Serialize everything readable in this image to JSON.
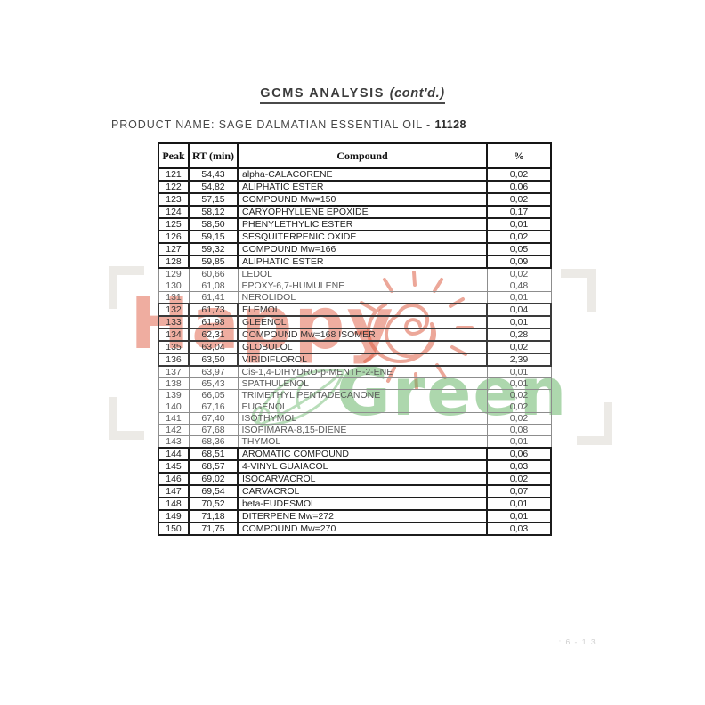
{
  "page": {
    "title_main": "GCMS ANALYSIS ",
    "title_suffix": "(cont'd.)",
    "product_label": "PRODUCT NAME: SAGE DALMATIAN ESSENTIAL OIL - ",
    "product_code": "11128",
    "footer_text": ". : 6 - 1 3"
  },
  "watermark": {
    "word1": "Happy",
    "word2": "Green",
    "red_color": "#de5438",
    "green_color": "#54ac54",
    "frame_color": "#eceae6"
  },
  "table": {
    "headers": [
      "Peak",
      "RT (min)",
      "Compound",
      "%"
    ],
    "rows": [
      {
        "peak": "121",
        "rt": "54,43",
        "compound": "alpha-CALACORENE",
        "pct": "0,02"
      },
      {
        "peak": "122",
        "rt": "54,82",
        "compound": "ALIPHATIC ESTER",
        "pct": "0,06"
      },
      {
        "peak": "123",
        "rt": "57,15",
        "compound": "COMPOUND Mw=150",
        "pct": "0,02"
      },
      {
        "peak": "124",
        "rt": "58,12",
        "compound": "CARYOPHYLLENE EPOXIDE",
        "pct": "0,17"
      },
      {
        "peak": "125",
        "rt": "58,50",
        "compound": "PHENYLETHYLIC ESTER",
        "pct": "0,01"
      },
      {
        "peak": "126",
        "rt": "59,15",
        "compound": "SESQUITERPENIC OXIDE",
        "pct": "0,02"
      },
      {
        "peak": "127",
        "rt": "59,32",
        "compound": "COMPOUND Mw=166",
        "pct": "0,05"
      },
      {
        "peak": "128",
        "rt": "59,85",
        "compound": "ALIPHATIC ESTER",
        "pct": "0,09"
      },
      {
        "peak": "129",
        "rt": "60,66",
        "compound": "LEDOL",
        "pct": "0,02"
      },
      {
        "peak": "130",
        "rt": "61,08",
        "compound": "EPOXY-6,7-HUMULENE",
        "pct": "0,48"
      },
      {
        "peak": "131",
        "rt": "61,41",
        "compound": "NEROLIDOL",
        "pct": "0,01"
      },
      {
        "peak": "132",
        "rt": "61,73",
        "compound": "ELEMOL",
        "pct": "0,04"
      },
      {
        "peak": "133",
        "rt": "61,98",
        "compound": "GLEENOL",
        "pct": "0,01"
      },
      {
        "peak": "134",
        "rt": "62,31",
        "compound": "COMPOUND Mw=168 ISOMER",
        "pct": "0,28"
      },
      {
        "peak": "135",
        "rt": "63,04",
        "compound": "GLOBULOL",
        "pct": "0,02"
      },
      {
        "peak": "136",
        "rt": "63,50",
        "compound": "VIRIDIFLOROL",
        "pct": "2,39"
      },
      {
        "peak": "137",
        "rt": "63,97",
        "compound": "Cis-1,4-DIHYDRO-p-MENTH-2-ENE",
        "pct": "0,01"
      },
      {
        "peak": "138",
        "rt": "65,43",
        "compound": "SPATHULENOL",
        "pct": "0,01"
      },
      {
        "peak": "139",
        "rt": "66,05",
        "compound": "TRIMETHYL PENTADECANONE",
        "pct": "0,02"
      },
      {
        "peak": "140",
        "rt": "67,16",
        "compound": "EUGENOL",
        "pct": "0,02"
      },
      {
        "peak": "141",
        "rt": "67,40",
        "compound": "ISOTHYMOL",
        "pct": "0,02"
      },
      {
        "peak": "142",
        "rt": "67,68",
        "compound": "ISOPIMARA-8,15-DIENE",
        "pct": "0,08"
      },
      {
        "peak": "143",
        "rt": "68,36",
        "compound": "THYMOL",
        "pct": "0,01"
      },
      {
        "peak": "144",
        "rt": "68,51",
        "compound": "AROMATIC COMPOUND",
        "pct": "0,06"
      },
      {
        "peak": "145",
        "rt": "68,57",
        "compound": "4-VINYL GUAIACOL",
        "pct": "0,03"
      },
      {
        "peak": "146",
        "rt": "69,02",
        "compound": "ISOCARVACROL",
        "pct": "0,02"
      },
      {
        "peak": "147",
        "rt": "69,54",
        "compound": "CARVACROL",
        "pct": "0,07"
      },
      {
        "peak": "148",
        "rt": "70,52",
        "compound": "beta-EUDESMOL",
        "pct": "0,01"
      },
      {
        "peak": "149",
        "rt": "71,18",
        "compound": "DITERPENE Mw=272",
        "pct": "0,01"
      },
      {
        "peak": "150",
        "rt": "71,75",
        "compound": "COMPOUND Mw=270",
        "pct": "0,03"
      }
    ]
  }
}
